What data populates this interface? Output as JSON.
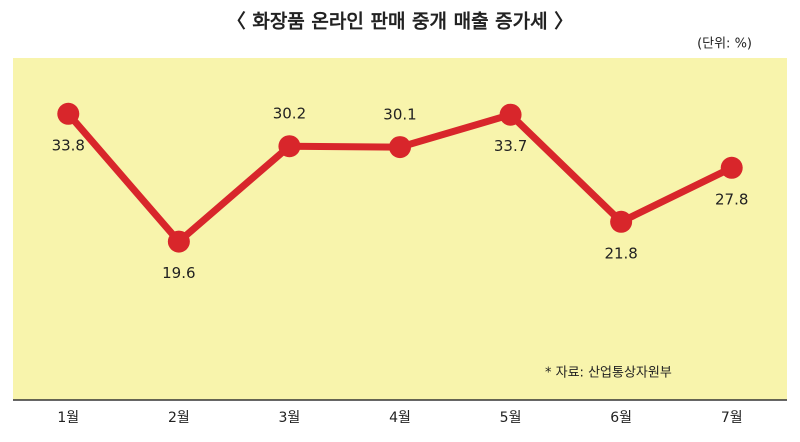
{
  "chart_data": {
    "type": "line",
    "title": "〈 화장품 온라인 판매 중개 매출 증가세 〉",
    "unit": "(단위: %)",
    "source": "* 자료: 산업통상자원부",
    "categories": [
      "1월",
      "2월",
      "3월",
      "4월",
      "5월",
      "6월",
      "7월"
    ],
    "values": [
      33.8,
      19.6,
      30.2,
      30.1,
      33.7,
      21.8,
      27.8
    ],
    "color": "#d8262b",
    "ylim": [
      2,
      40
    ]
  }
}
